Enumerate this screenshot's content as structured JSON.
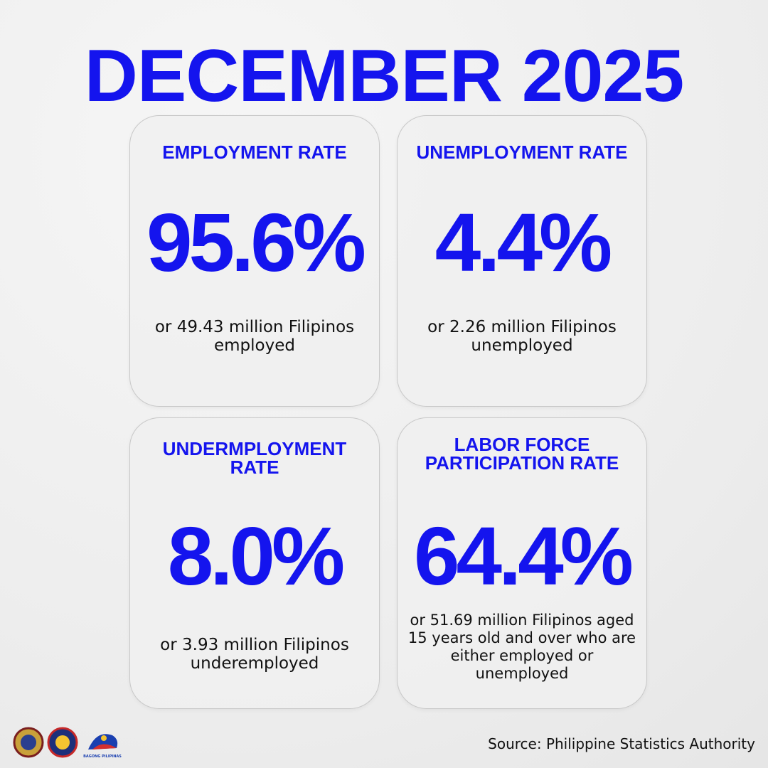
{
  "header": {
    "title": "DECEMBER 2025"
  },
  "cards": [
    {
      "title": "EMPLOYMENT RATE",
      "value": "95.6%",
      "description": "or 49.43 million Filipinos employed"
    },
    {
      "title": "UNEMPLOYMENT RATE",
      "value": "4.4%",
      "description": "or 2.26 million Filipinos unemployed"
    },
    {
      "title": "UNDERMPLOYMENT RATE",
      "value": "8.0%",
      "description": "or 3.93 million Filipinos underemployed"
    },
    {
      "title": "LABOR FORCE PARTICIPATION RATE",
      "value": "64.4%",
      "description": "or 51.69 million Filipinos aged 15 years old and over who are either employed or unemployed"
    }
  ],
  "footer": {
    "source": "Source: Philippine Statistics Authority",
    "logo_text": "BAGONG PILIPINAS"
  }
}
